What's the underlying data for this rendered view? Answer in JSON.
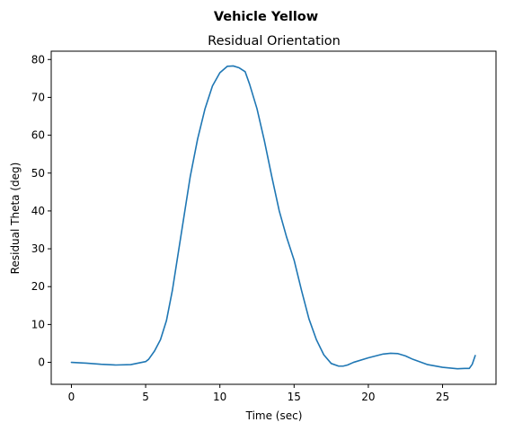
{
  "chart_data": {
    "type": "line",
    "suptitle": "Vehicle Yellow",
    "title": "Residual Orientation",
    "xlabel": "Time (sec)",
    "ylabel": "Residual Theta (deg)",
    "xlim": [
      -1.36,
      28.6
    ],
    "ylim": [
      -5.8,
      82.2
    ],
    "xticks": [
      0,
      5,
      10,
      15,
      20,
      25
    ],
    "yticks": [
      0,
      10,
      20,
      30,
      40,
      50,
      60,
      70,
      80
    ],
    "grid": false,
    "series": [
      {
        "color": "#1f77b4",
        "x": [
          0,
          1,
          2,
          3,
          4,
          5,
          5.2,
          5.6,
          6,
          6.4,
          6.8,
          7.2,
          7.6,
          8,
          8.5,
          9,
          9.5,
          10,
          10.5,
          10.9,
          11.3,
          11.7,
          12,
          12.5,
          13,
          13.5,
          14,
          14.5,
          15,
          15.5,
          16,
          16.5,
          17,
          17.5,
          18,
          18.3,
          18.6,
          19,
          20,
          21,
          21.5,
          22,
          22.5,
          23,
          24,
          25,
          26,
          26.5,
          26.8,
          27,
          27.2
        ],
        "y": [
          0,
          -0.2,
          -0.5,
          -0.7,
          -0.6,
          0.2,
          0.8,
          3,
          6,
          11,
          19,
          29,
          39,
          49,
          59,
          67,
          73,
          76.5,
          78.2,
          78.3,
          77.8,
          76.8,
          73.5,
          67,
          58.5,
          49,
          40,
          33,
          27,
          19,
          11.5,
          6,
          2,
          -0.3,
          -1,
          -1,
          -0.7,
          0,
          1.2,
          2.2,
          2.4,
          2.3,
          1.7,
          0.8,
          -0.6,
          -1.3,
          -1.7,
          -1.6,
          -1.6,
          -0.5,
          1.8
        ]
      }
    ]
  }
}
